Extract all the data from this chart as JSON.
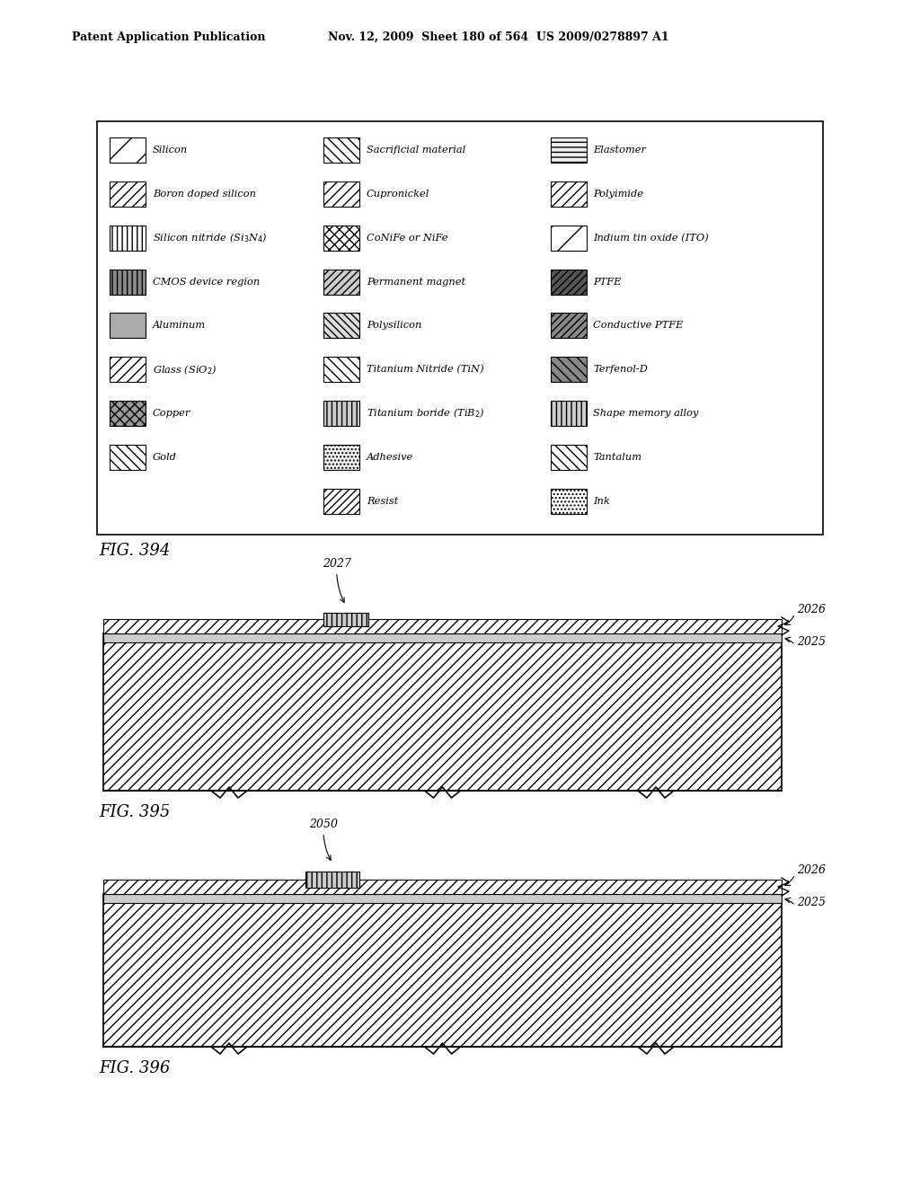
{
  "header_left": "Patent Application Publication",
  "header_mid": "Nov. 12, 2009  Sheet 180 of 564  US 2009/0278897 A1",
  "bg_color": "#ffffff",
  "fig394_label": "FIG. 394",
  "fig395_label": "FIG. 395",
  "fig396_label": "FIG. 396",
  "label_2027": "2027",
  "label_2026_395": "2026",
  "label_2025_395": "2025",
  "label_2050": "2050",
  "label_2026_396": "2026",
  "label_2025_396": "2025",
  "legend_col1_labels": [
    "Silicon",
    "Boron doped silicon",
    "Silicon nitride (Si$_3$N$_4$)",
    "CMOS device region",
    "Aluminum",
    "Glass (SiO$_2$)",
    "Copper",
    "Gold"
  ],
  "legend_col1_hatches": [
    "/",
    "///",
    "|||",
    "|||",
    "",
    "///",
    "xxx",
    "\\\\\\"
  ],
  "legend_col1_fc": [
    "white",
    "white",
    "white",
    "#888888",
    "#aaaaaa",
    "white",
    "#999999",
    "white"
  ],
  "legend_col2_labels": [
    "Sacrificial material",
    "Cupronickel",
    "CoNiFe or NiFe",
    "Permanent magnet",
    "Polysilicon",
    "Titanium Nitride (TiN)",
    "Titanium boride (TiB$_2$)",
    "Adhesive",
    "Resist"
  ],
  "legend_col2_hatches": [
    "\\\\\\",
    "///",
    "xxx",
    "////",
    "\\\\\\\\",
    "\\\\\\",
    "|||",
    "....",
    "////"
  ],
  "legend_col2_fc": [
    "white",
    "white",
    "white",
    "#cccccc",
    "#dddddd",
    "white",
    "#cccccc",
    "#eeeeee",
    "white"
  ],
  "legend_col3_labels": [
    "Elastomer",
    "Polyimide",
    "Indium tin oxide (ITO)",
    "PTFE",
    "Conductive PTFE",
    "Terfenol-D",
    "Shape memory alloy",
    "Tantalum",
    "Ink"
  ],
  "legend_col3_hatches": [
    "---",
    "///",
    "/",
    "////",
    "////",
    "\\\\\\",
    "|||",
    "\\\\\\",
    "...."
  ],
  "legend_col3_fc": [
    "#eeeeee",
    "white",
    "white",
    "#555555",
    "#888888",
    "#888888",
    "#cccccc",
    "white",
    "white"
  ]
}
